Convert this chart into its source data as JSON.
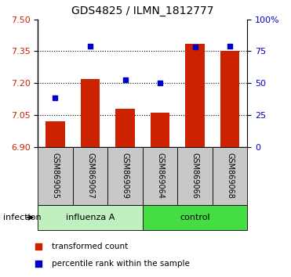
{
  "title": "GDS4825 / ILMN_1812777",
  "samples": [
    "GSM869065",
    "GSM869067",
    "GSM869069",
    "GSM869064",
    "GSM869066",
    "GSM869068"
  ],
  "group_labels": [
    "influenza A",
    "control"
  ],
  "bar_values": [
    7.02,
    7.22,
    7.08,
    7.06,
    7.385,
    7.35
  ],
  "dot_values": [
    7.13,
    7.375,
    7.215,
    7.2,
    7.37,
    7.375
  ],
  "bar_bottom": 6.9,
  "ylim_min": 6.9,
  "ylim_max": 7.5,
  "yticks_left": [
    6.9,
    7.05,
    7.2,
    7.35,
    7.5
  ],
  "yticks_right_vals": [
    0,
    25,
    50,
    75,
    100
  ],
  "bar_color": "#cc2200",
  "dot_color": "#0000cc",
  "xlabel_area_color": "#c8c8c8",
  "influenza_color": "#c0f0c0",
  "control_color": "#44dd44",
  "infection_label": "infection",
  "legend_bar": "transformed count",
  "legend_dot": "percentile rank within the sample",
  "right_axis_label_color": "#0000cc",
  "left_axis_label_color": "#cc2200",
  "bar_width": 0.55
}
